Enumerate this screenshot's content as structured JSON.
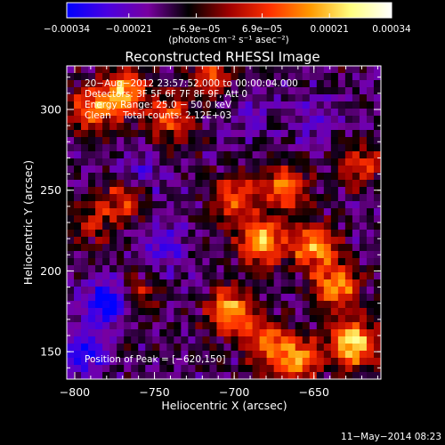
{
  "chart_data": {
    "type": "heatmap",
    "title": "Reconstructed RHESSI Image",
    "xlabel": "Heliocentric X (arcsec)",
    "ylabel": "Heliocentric Y (arcsec)",
    "xlim": [
      -805,
      -608
    ],
    "ylim": [
      133,
      327
    ],
    "x_ticks": [
      -800,
      -750,
      -700,
      -650
    ],
    "x_tick_labels": [
      "−800",
      "−750",
      "−700",
      "−650"
    ],
    "y_ticks": [
      150,
      200,
      250,
      300
    ],
    "y_tick_labels": [
      "150",
      "200",
      "250",
      "300"
    ],
    "colorbar": {
      "colors": [
        "#0000ff",
        "#4a00e0",
        "#7800a0",
        "#000000",
        "#a00000",
        "#ff3000",
        "#ff9a00",
        "#ffff80",
        "#ffffff"
      ],
      "range": [
        -0.00034,
        0.00034
      ],
      "tick_values": [
        -0.00034,
        -0.00021,
        -6.9e-05,
        6.9e-05,
        0.00021,
        0.00034
      ],
      "tick_labels": [
        "−0.00034",
        "−0.00021",
        "−6.9e−05",
        "6.9e−05",
        "0.00021",
        "0.00034"
      ],
      "unit_label": "(photons cm⁻² s⁻¹ asec⁻²)"
    },
    "annotations": [
      "20−Aug−2012 23:57:52.000 to 00:00:04.000",
      "Detectors: 3F 5F 6F 7F 8F 9F, Att 0",
      "Energy Range: 25.0 − 50.0 keV",
      "Clean    Total counts: 2.12E+03"
    ],
    "peak_label": "Position of Peak = [−620,150]",
    "footer": "11−May−2014 08:23",
    "sources": [
      {
        "x": -625,
        "y": 155,
        "w": 0.00034
      },
      {
        "x": -635,
        "y": 190,
        "w": 0.00026
      },
      {
        "x": -650,
        "y": 215,
        "w": 0.00027
      },
      {
        "x": -682,
        "y": 218,
        "w": 0.0003
      },
      {
        "x": -700,
        "y": 245,
        "w": 0.00022
      },
      {
        "x": -668,
        "y": 252,
        "w": 0.00022
      },
      {
        "x": -703,
        "y": 175,
        "w": 0.00028
      },
      {
        "x": -680,
        "y": 155,
        "w": 0.0002
      },
      {
        "x": -660,
        "y": 145,
        "w": 0.00025
      },
      {
        "x": -770,
        "y": 310,
        "w": 0.00028
      },
      {
        "x": -790,
        "y": 300,
        "w": 0.0002
      },
      {
        "x": -740,
        "y": 295,
        "w": 0.00018
      },
      {
        "x": -715,
        "y": 320,
        "w": 0.00016
      },
      {
        "x": -770,
        "y": 245,
        "w": 0.00016
      },
      {
        "x": -620,
        "y": 265,
        "w": 0.00014
      },
      {
        "x": -760,
        "y": 185,
        "w": 0.0001
      },
      {
        "x": -790,
        "y": 230,
        "w": 0.0001
      },
      {
        "x": -780,
        "y": 180,
        "w": -0.0003
      },
      {
        "x": -795,
        "y": 150,
        "w": -0.00022
      },
      {
        "x": -760,
        "y": 260,
        "w": -0.00016
      },
      {
        "x": -745,
        "y": 215,
        "w": -0.00018
      },
      {
        "x": -690,
        "y": 300,
        "w": -0.00012
      },
      {
        "x": -650,
        "y": 295,
        "w": -0.00012
      }
    ]
  }
}
